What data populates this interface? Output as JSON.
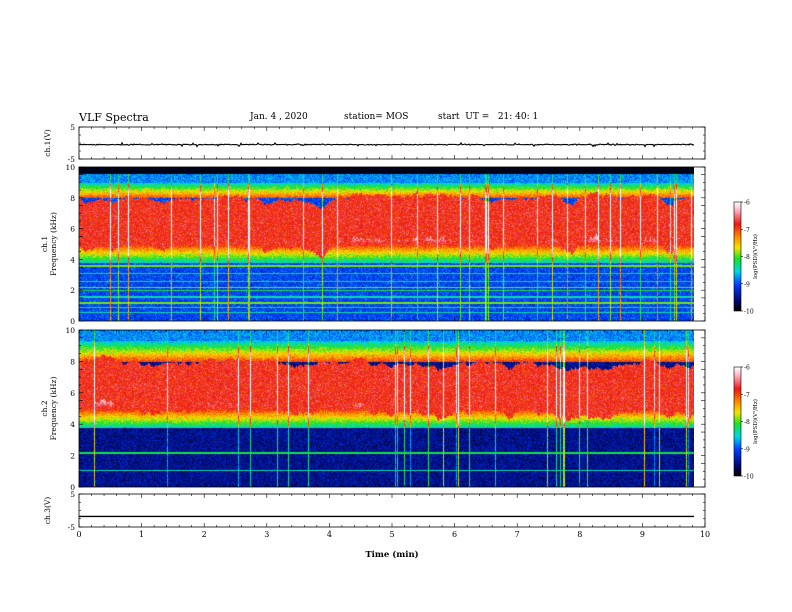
{
  "header": {
    "title": "VLF Spectra",
    "date": "Jan. 4 , 2020",
    "station": "station= MOS",
    "start": "start  UT =   21: 40: 1"
  },
  "chart_data": [
    {
      "type": "line",
      "panel": "ch1-waveform",
      "ylabel": "ch.1(V)",
      "ylim": [
        -5,
        5
      ],
      "yticks": [
        "5",
        "-5"
      ],
      "series": [
        {
          "values_constant": -0.5
        }
      ]
    },
    {
      "type": "heatmap",
      "panel": "ch1-spectrogram",
      "ylabel": "ch.1\nFrequency (kHz)",
      "ylim": [
        0,
        10
      ],
      "yticks": [
        "0",
        "2",
        "4",
        "6",
        "8",
        "10"
      ],
      "colorbar": {
        "label": "log(PSD)(V²/Hz)",
        "range": [
          -10,
          -6
        ],
        "ticks": [
          "-6",
          "-7",
          "-8",
          "-9",
          "-10"
        ]
      },
      "band_kHz": {
        "strong": [
          5.0,
          8.0
        ],
        "medium": [
          3.8,
          9.0
        ],
        "cutoff_top": 9.6
      },
      "interference_lines_kHz": [
        0.6,
        0.9,
        1.2,
        1.6,
        2.0,
        2.2,
        2.6,
        3.1,
        3.6
      ]
    },
    {
      "type": "heatmap",
      "panel": "ch2-spectrogram",
      "ylabel": "ch.2\nFrequency (kHz)",
      "ylim": [
        0,
        10
      ],
      "yticks": [
        "0",
        "2",
        "4",
        "6",
        "8",
        "10"
      ],
      "colorbar": {
        "label": "log(PSD)(V²/Hz)",
        "range": [
          -10,
          -6
        ],
        "ticks": [
          "-6",
          "-7",
          "-8",
          "-9",
          "-10"
        ]
      },
      "band_kHz": {
        "strong": [
          5.0,
          8.0
        ],
        "medium": [
          3.8,
          9.3
        ],
        "cutoff_top": 10
      },
      "interference_lines_kHz": [
        1.1,
        2.2
      ]
    },
    {
      "type": "line",
      "panel": "ch3-waveform",
      "ylabel": "ch.3(V)",
      "ylim": [
        -5,
        5
      ],
      "yticks": [
        "5",
        "-5"
      ],
      "series": [
        {
          "values_constant": -1.8
        }
      ]
    }
  ],
  "xaxis": {
    "label": "Time (min)",
    "range": [
      0,
      10
    ],
    "ticks": [
      "0",
      "1",
      "2",
      "3",
      "4",
      "5",
      "6",
      "7",
      "8",
      "9",
      "10"
    ],
    "data_end": 9.83
  },
  "colors": {
    "black": "#000000",
    "navy": "#000a78",
    "blue": "#0033ff",
    "cyan": "#00d8e8",
    "green": "#18e020",
    "yellow": "#f0e000",
    "orange": "#ff8a00",
    "red": "#ee1a12",
    "pink": "#ffb8c0",
    "white": "#ffffff"
  }
}
